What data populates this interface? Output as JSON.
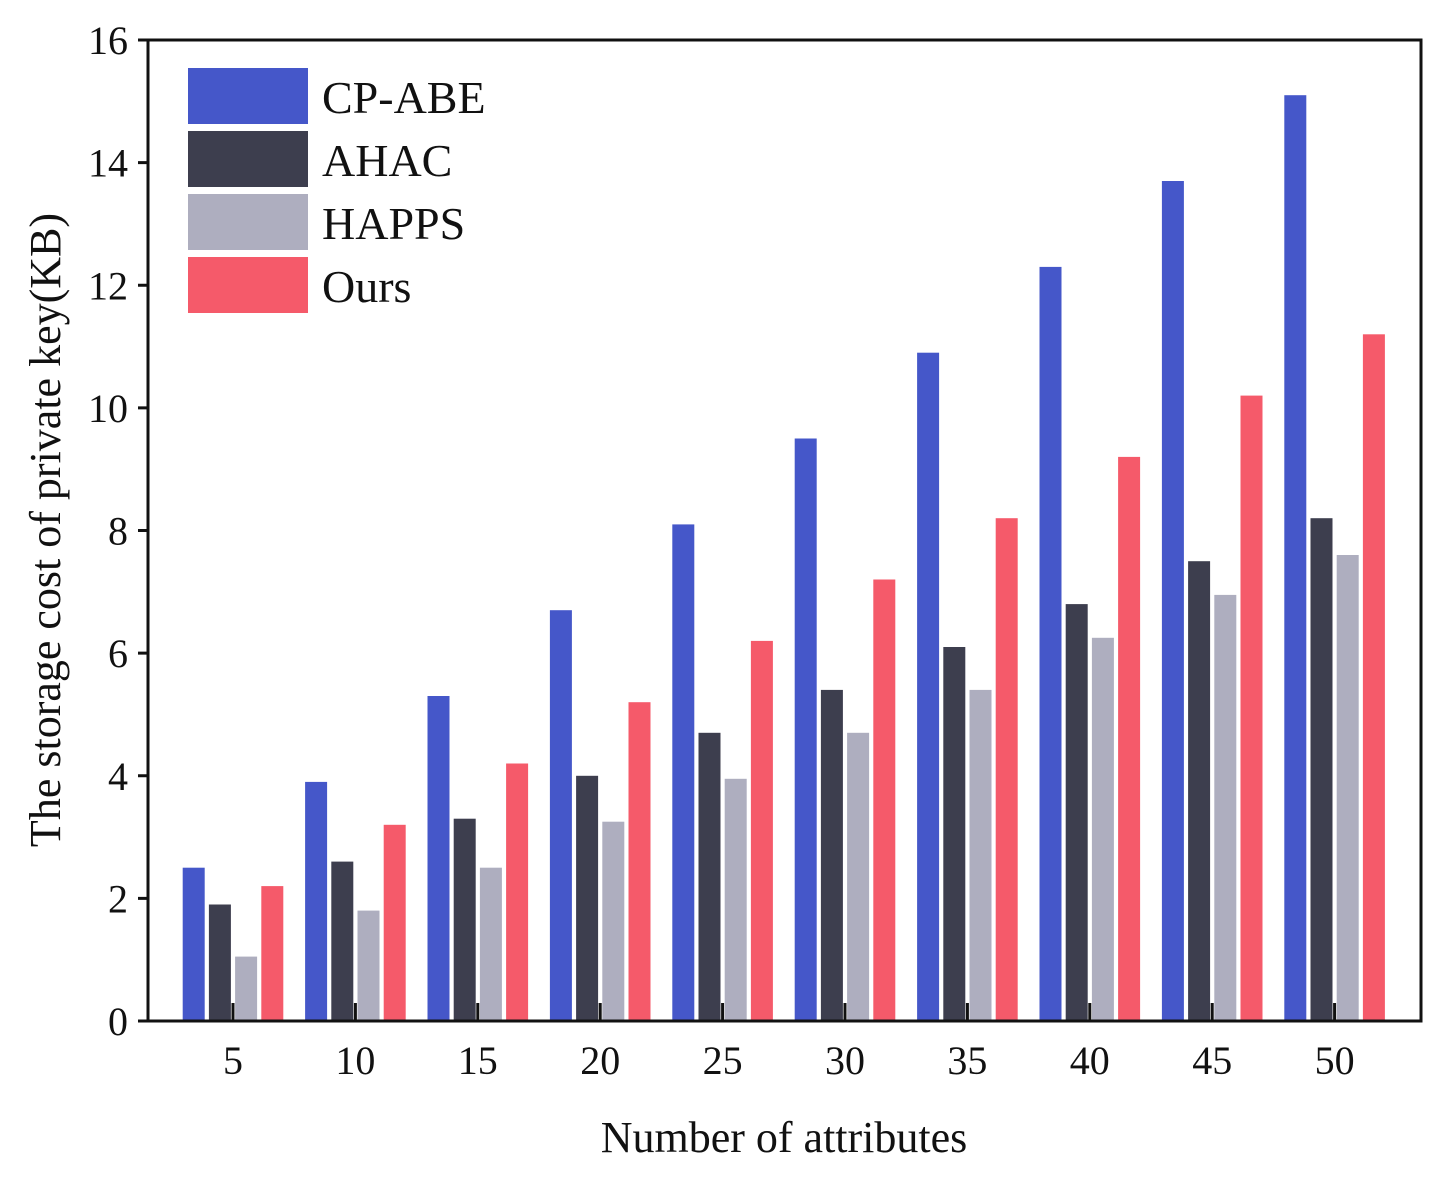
{
  "chart_data": {
    "type": "bar",
    "categories": [
      "5",
      "10",
      "15",
      "20",
      "25",
      "30",
      "35",
      "40",
      "45",
      "50"
    ],
    "series": [
      {
        "name": "CP-ABE",
        "color": "#4557c9",
        "values": [
          2.5,
          3.9,
          5.3,
          6.7,
          8.1,
          9.5,
          10.9,
          12.3,
          13.7,
          15.1
        ]
      },
      {
        "name": "AHAC",
        "color": "#3d3e4e",
        "values": [
          1.9,
          2.6,
          3.3,
          4.0,
          4.7,
          5.4,
          6.1,
          6.8,
          7.5,
          8.2
        ]
      },
      {
        "name": "HAPPS",
        "color": "#aeaebf",
        "values": [
          1.05,
          1.8,
          2.5,
          3.25,
          3.95,
          4.7,
          5.4,
          6.25,
          6.95,
          7.6
        ]
      },
      {
        "name": "Ours",
        "color": "#f55a6a",
        "values": [
          2.2,
          3.2,
          4.2,
          5.2,
          6.2,
          7.2,
          8.2,
          9.2,
          10.2,
          11.2
        ]
      }
    ],
    "title": "",
    "xlabel": "Number of attributes",
    "ylabel": "The storage cost of private key(KB)",
    "ylim": [
      0,
      16
    ],
    "yticks": [
      0,
      2,
      4,
      6,
      8,
      10,
      12,
      14,
      16
    ],
    "grid": false,
    "legend_position": "top-left"
  }
}
